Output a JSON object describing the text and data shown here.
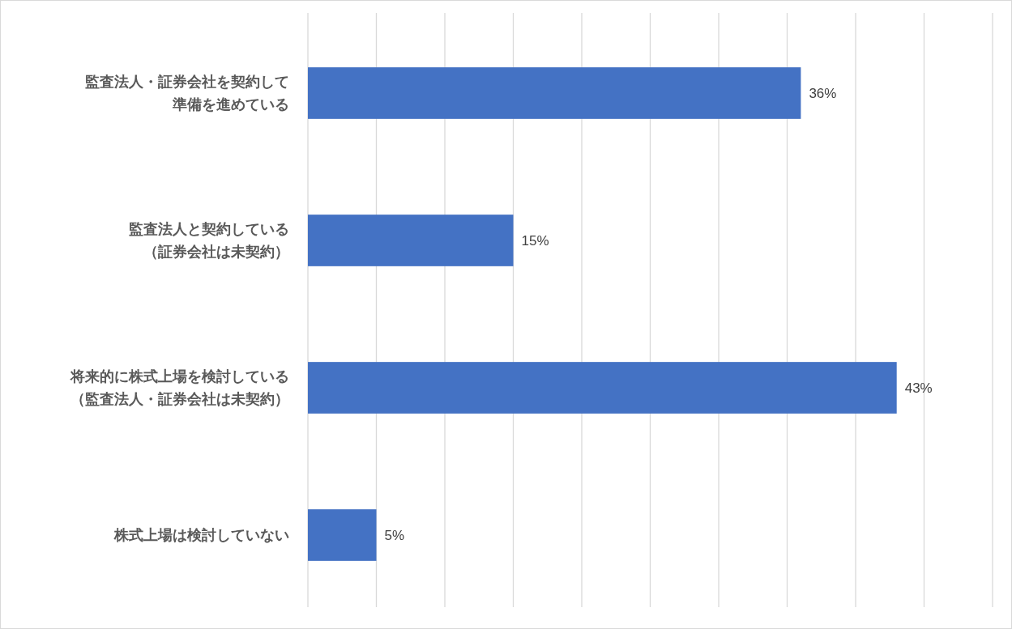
{
  "chart_data": {
    "type": "bar",
    "orientation": "horizontal",
    "categories": [
      "監査法人・証券会社を契約して準備を進めている",
      "監査法人と契約している（証券会社は未契約）",
      "将来的に株式上場を検討している（監査法人・証券会社は未契約）",
      "株式上場は検討していない"
    ],
    "values": [
      36,
      15,
      43,
      5
    ],
    "value_labels": [
      "36%",
      "15%",
      "43%",
      "5%"
    ],
    "color": "#4472c4",
    "xlim": [
      0,
      50
    ],
    "xticks": [
      {
        "value": 0,
        "label": null
      },
      {
        "value": 5,
        "label": null
      },
      {
        "value": 10,
        "label": null
      },
      {
        "value": 15,
        "label": null
      },
      {
        "value": 20,
        "label": null
      },
      {
        "value": 25,
        "label": null
      },
      {
        "value": 30,
        "label": null
      },
      {
        "value": 35,
        "label": null
      },
      {
        "value": 40,
        "label": null
      },
      {
        "value": 45,
        "label": null
      },
      {
        "value": 50,
        "label": null
      }
    ],
    "grid": "x",
    "tick_labels": "y"
  }
}
